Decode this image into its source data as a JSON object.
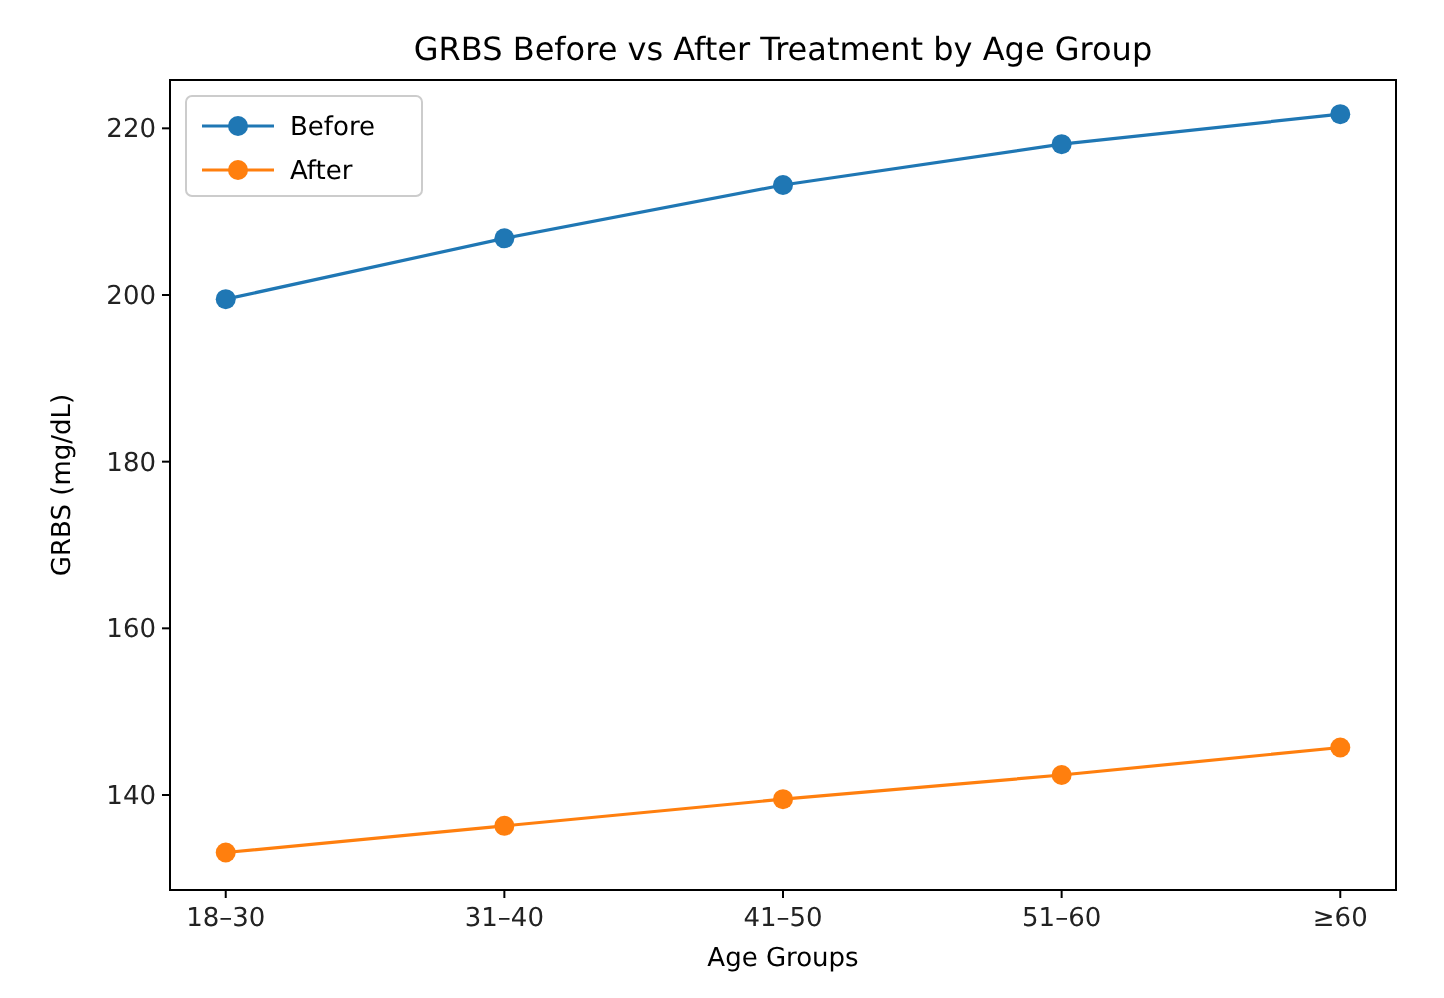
{
  "chart_data": {
    "type": "line",
    "title": "GRBS Before vs After Treatment by Age Group",
    "xlabel": "Age Groups",
    "ylabel": "GRBS (mg/dL)",
    "categories": [
      "18–30",
      "31–40",
      "41–50",
      "51–60",
      "≥60"
    ],
    "series": [
      {
        "name": "Before",
        "color": "#1f77b4",
        "values": [
          199.5,
          206.8,
          213.2,
          218.1,
          221.7
        ]
      },
      {
        "name": "After",
        "color": "#ff7f0e",
        "values": [
          133.1,
          136.3,
          139.5,
          142.4,
          145.7
        ]
      }
    ],
    "ylim": [
      128.6,
      225.8
    ],
    "yticks": [
      140,
      160,
      180,
      200,
      220
    ],
    "marker": "circle",
    "legend": "top left",
    "grid": false
  }
}
